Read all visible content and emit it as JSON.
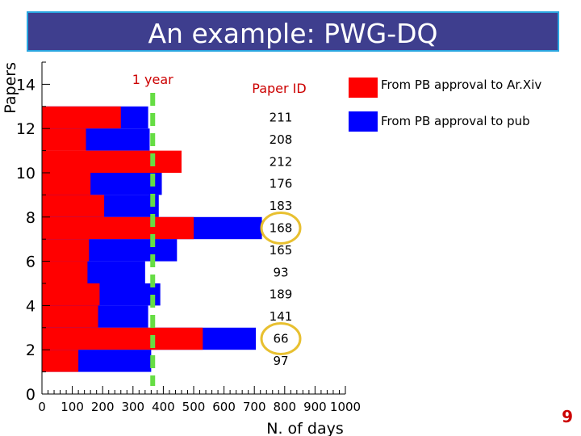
{
  "slide": {
    "title": "An example: PWG-DQ",
    "page_number": "9"
  },
  "chart_data": {
    "type": "bar",
    "orientation": "horizontal",
    "xlabel": "N. of days",
    "ylabel": "Papers",
    "xlim": [
      0,
      1000
    ],
    "ylim": [
      0,
      15
    ],
    "x_ticks": [
      0,
      100,
      200,
      300,
      400,
      500,
      600,
      700,
      800,
      900,
      1000
    ],
    "y_ticks": [
      0,
      2,
      4,
      6,
      8,
      10,
      12,
      14
    ],
    "id_column_label": "Paper ID",
    "reference_line": {
      "label": "1 year",
      "x": 365,
      "color": "#66dd44"
    },
    "rows": [
      {
        "paper_id": "211",
        "y_low": 12,
        "y_high": 13,
        "arxiv_days": 260,
        "pub_days": 350
      },
      {
        "paper_id": "208",
        "y_low": 11,
        "y_high": 12,
        "arxiv_days": 145,
        "pub_days": 355
      },
      {
        "paper_id": "212",
        "y_low": 10,
        "y_high": 11,
        "arxiv_days": 460,
        "pub_days": 0
      },
      {
        "paper_id": "176",
        "y_low": 9,
        "y_high": 10,
        "arxiv_days": 160,
        "pub_days": 395
      },
      {
        "paper_id": "183",
        "y_low": 8,
        "y_high": 9,
        "arxiv_days": 205,
        "pub_days": 385
      },
      {
        "paper_id": "168",
        "y_low": 7,
        "y_high": 8,
        "arxiv_days": 500,
        "pub_days": 725,
        "highlighted": true
      },
      {
        "paper_id": "165",
        "y_low": 6,
        "y_high": 7,
        "arxiv_days": 155,
        "pub_days": 445
      },
      {
        "paper_id": "93",
        "y_low": 5,
        "y_high": 6,
        "arxiv_days": 150,
        "pub_days": 340
      },
      {
        "paper_id": "189",
        "y_low": 4,
        "y_high": 5,
        "arxiv_days": 190,
        "pub_days": 390
      },
      {
        "paper_id": "141",
        "y_low": 3,
        "y_high": 4,
        "arxiv_days": 185,
        "pub_days": 350
      },
      {
        "paper_id": "66",
        "y_low": 2,
        "y_high": 3,
        "arxiv_days": 530,
        "pub_days": 705,
        "highlighted": true
      },
      {
        "paper_id": "97",
        "y_low": 1,
        "y_high": 2,
        "arxiv_days": 120,
        "pub_days": 360
      }
    ],
    "series": [
      {
        "name": "From PB approval to Ar.Xiv",
        "color": "#ff0000"
      },
      {
        "name": "From PB approval to pub",
        "color": "#0000ff"
      }
    ],
    "highlight_color": "#e8c030",
    "id_label_color": "#000000",
    "axis_label_color": "#000000",
    "annotation_color": "#cc0000"
  }
}
